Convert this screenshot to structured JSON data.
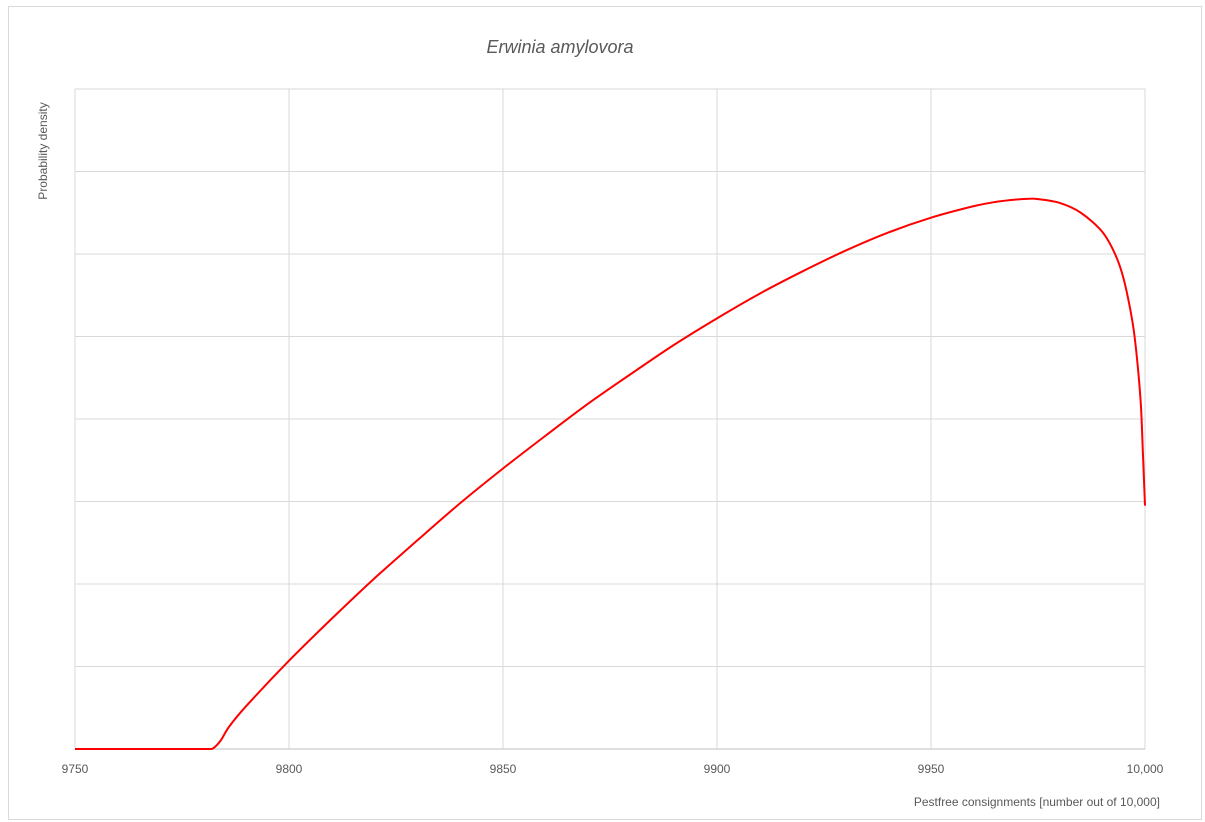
{
  "chart_data": {
    "type": "line",
    "title": "Erwinia amylovora",
    "xlabel": "Pestfree consignments [number out of 10,000]",
    "ylabel": "Probability density",
    "xlim": [
      9750,
      10000
    ],
    "ylim": [
      0,
      8
    ],
    "x_ticks": [
      9750,
      9800,
      9850,
      9900,
      9950,
      10000
    ],
    "x_tick_labels": [
      "9750",
      "9800",
      "9850",
      "9900",
      "9950",
      "10,000"
    ],
    "y_gridlines": [
      1,
      2,
      3,
      4,
      5,
      6,
      7,
      8
    ],
    "y_tick_labels_visible": false,
    "grid": true,
    "legend": "none",
    "line_color": "#ff0000",
    "series": [
      {
        "x": [
          9750,
          9760,
          9770,
          9780,
          9782,
          9784,
          9786,
          9790,
          9800,
          9810,
          9820,
          9830,
          9840,
          9850,
          9860,
          9870,
          9880,
          9890,
          9900,
          9910,
          9920,
          9930,
          9940,
          9950,
          9960,
          9965,
          9970,
          9973,
          9975,
          9980,
          9985,
          9990,
          9993,
          9995,
          9997,
          9998,
          9999,
          9999.5,
          10000
        ],
        "values": [
          0,
          0,
          0,
          0,
          0,
          0.1,
          0.27,
          0.52,
          1.07,
          1.58,
          2.07,
          2.53,
          2.98,
          3.4,
          3.8,
          4.19,
          4.55,
          4.9,
          5.22,
          5.52,
          5.79,
          6.04,
          6.26,
          6.44,
          6.58,
          6.63,
          6.66,
          6.67,
          6.665,
          6.62,
          6.5,
          6.27,
          6.0,
          5.7,
          5.2,
          4.8,
          4.2,
          3.6,
          2.95
        ]
      }
    ]
  }
}
